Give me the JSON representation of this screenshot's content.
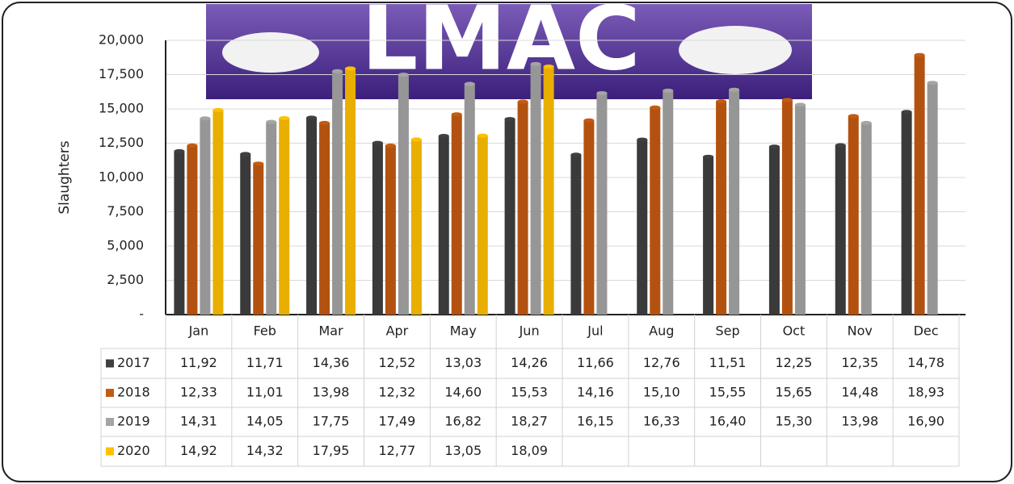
{
  "chart_data": {
    "type": "bar",
    "logo": "LMAC",
    "ylabel": "Slaughters",
    "categories": [
      "Jan",
      "Feb",
      "Mar",
      "Apr",
      "May",
      "Jun",
      "Jul",
      "Aug",
      "Sep",
      "Oct",
      "Nov",
      "Dec"
    ],
    "series": [
      {
        "name": "2017",
        "color": "#404040",
        "values": [
          11920,
          11710,
          14360,
          12520,
          13030,
          14260,
          11660,
          12760,
          11510,
          12250,
          12350,
          14780
        ],
        "value_labels": [
          "11,92",
          "11,71",
          "14,36",
          "12,52",
          "13,03",
          "14,26",
          "11,66",
          "12,76",
          "11,51",
          "12,25",
          "12,35",
          "14,78"
        ]
      },
      {
        "name": "2018",
        "color": "#c55a11",
        "values": [
          12330,
          11010,
          13980,
          12320,
          14600,
          15530,
          14160,
          15100,
          15550,
          15650,
          14480,
          18930
        ],
        "value_labels": [
          "12,33",
          "11,01",
          "13,98",
          "12,32",
          "14,60",
          "15,53",
          "14,16",
          "15,10",
          "15,55",
          "15,65",
          "14,48",
          "18,93"
        ]
      },
      {
        "name": "2019",
        "color": "#a5a5a5",
        "values": [
          14310,
          14050,
          17750,
          17490,
          16820,
          18270,
          16150,
          16330,
          16400,
          15300,
          13980,
          16900
        ],
        "value_labels": [
          "14,31",
          "14,05",
          "17,75",
          "17,49",
          "16,82",
          "18,27",
          "16,15",
          "16,33",
          "16,40",
          "15,30",
          "13,98",
          "16,90"
        ]
      },
      {
        "name": "2020",
        "color": "#ffc000",
        "values": [
          14920,
          14320,
          17950,
          12770,
          13050,
          18090,
          null,
          null,
          null,
          null,
          null,
          null
        ],
        "value_labels": [
          "14,92",
          "14,32",
          "17,95",
          "12,77",
          "13,05",
          "18,09",
          null,
          null,
          null,
          null,
          null,
          null
        ]
      }
    ],
    "ylim": [
      0,
      20000
    ],
    "yticks": [
      {
        "value": 0,
        "label": "-"
      },
      {
        "value": 2500,
        "label": "2,500"
      },
      {
        "value": 5000,
        "label": "5,000"
      },
      {
        "value": 7500,
        "label": "7,500"
      },
      {
        "value": 10000,
        "label": "10,000"
      },
      {
        "value": 12500,
        "label": "12,500"
      },
      {
        "value": 15000,
        "label": "15,000"
      },
      {
        "value": 17500,
        "label": "17,500"
      },
      {
        "value": 20000,
        "label": "20,000"
      }
    ],
    "grid": true
  }
}
